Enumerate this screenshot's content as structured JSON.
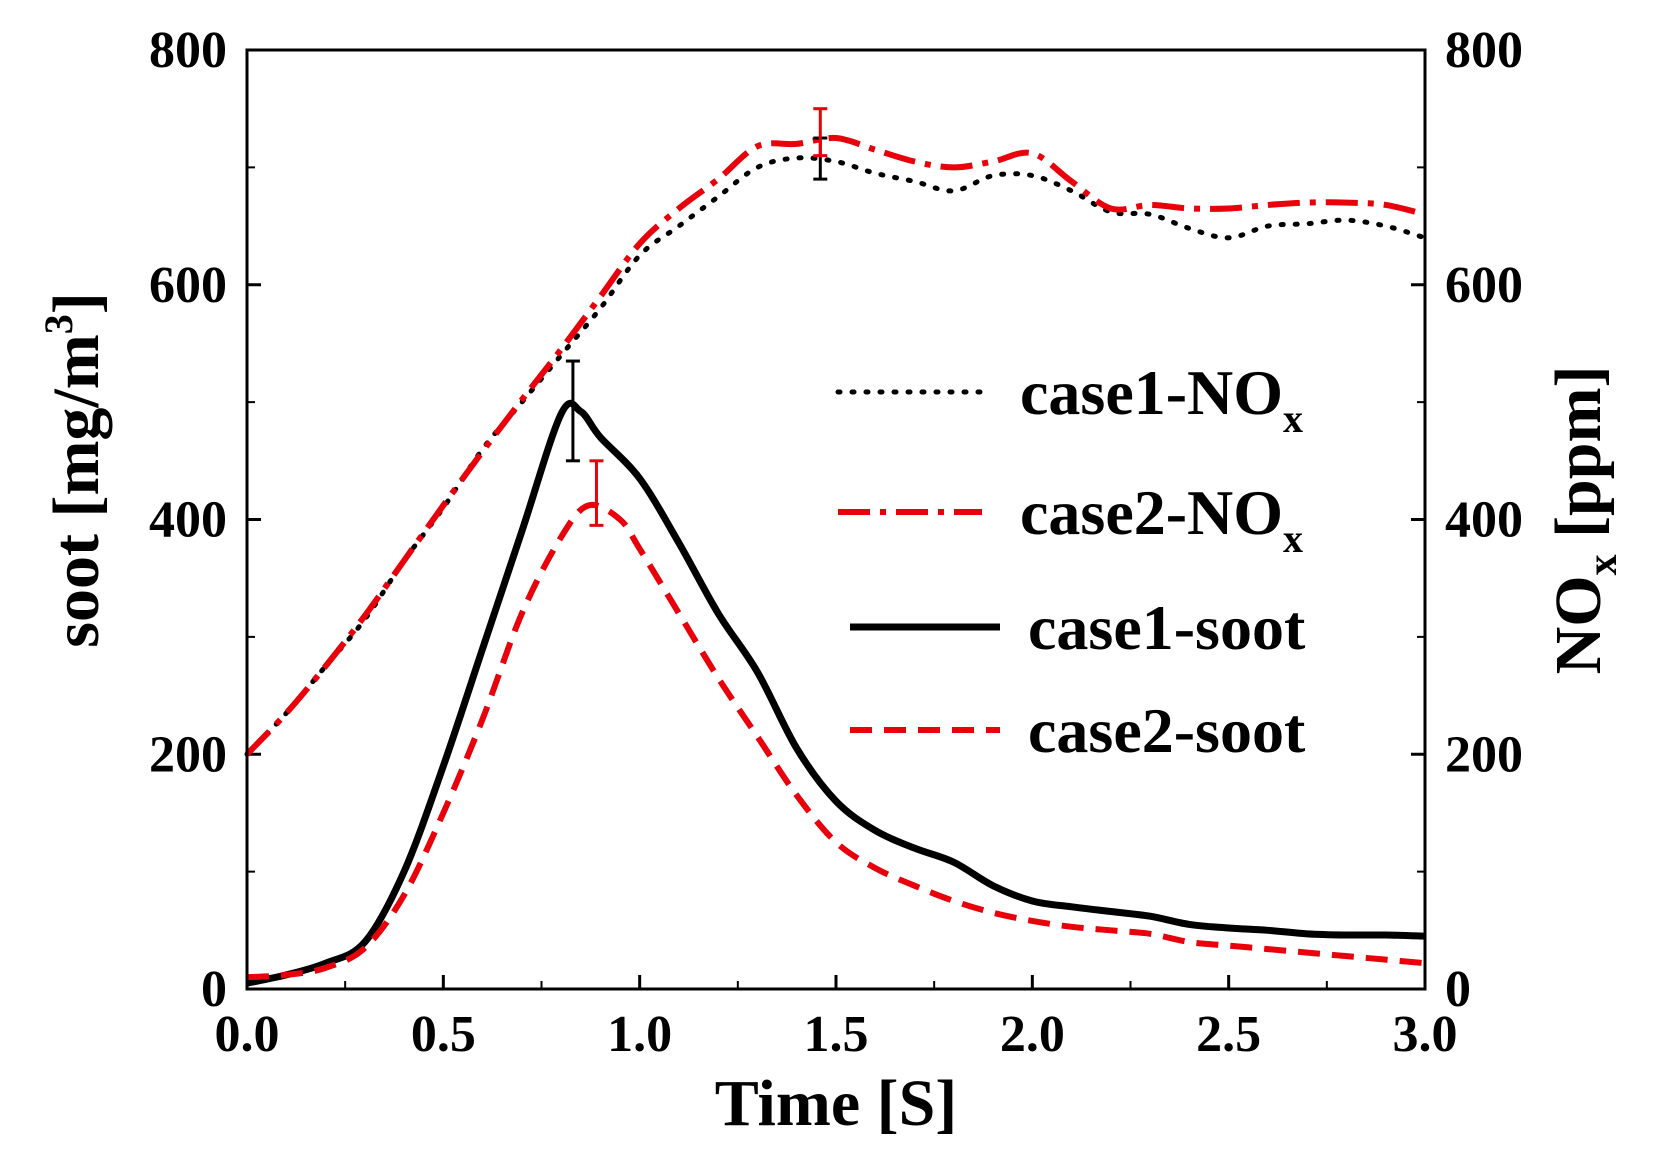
{
  "chart_data": {
    "type": "line",
    "xlabel": "Time [S]",
    "ylabel_left": {
      "main": "soot [mg/m",
      "sup": "3",
      "close": "]"
    },
    "ylabel_right": {
      "main": "NO",
      "sub": "x",
      "rest": " [ppm]"
    },
    "xlim": [
      0,
      3
    ],
    "ylim_left": [
      0,
      800
    ],
    "ylim_right": [
      0,
      800
    ],
    "x_ticks": [
      "0.0",
      "0.5",
      "1.0",
      "1.5",
      "2.0",
      "2.5",
      "3.0"
    ],
    "y_ticks_left": [
      "0",
      "200",
      "400",
      "600",
      "800"
    ],
    "y_ticks_right": [
      "0",
      "200",
      "400",
      "600",
      "800"
    ],
    "legend_position": "right-middle",
    "series": [
      {
        "id": "case1-nox",
        "legend_main": "case1-NO",
        "legend_sub": "x",
        "axis": "right",
        "color": "#000000",
        "style": "dotted",
        "points": [
          [
            0,
            200
          ],
          [
            0.1,
            235
          ],
          [
            0.2,
            275
          ],
          [
            0.3,
            315
          ],
          [
            0.4,
            365
          ],
          [
            0.5,
            410
          ],
          [
            0.6,
            460
          ],
          [
            0.7,
            500
          ],
          [
            0.8,
            540
          ],
          [
            0.9,
            580
          ],
          [
            1.0,
            625
          ],
          [
            1.1,
            650
          ],
          [
            1.2,
            675
          ],
          [
            1.3,
            700
          ],
          [
            1.4,
            708
          ],
          [
            1.5,
            705
          ],
          [
            1.6,
            695
          ],
          [
            1.7,
            688
          ],
          [
            1.8,
            680
          ],
          [
            1.9,
            693
          ],
          [
            2.0,
            693
          ],
          [
            2.1,
            680
          ],
          [
            2.2,
            662
          ],
          [
            2.3,
            660
          ],
          [
            2.4,
            648
          ],
          [
            2.5,
            640
          ],
          [
            2.6,
            650
          ],
          [
            2.7,
            652
          ],
          [
            2.8,
            655
          ],
          [
            2.9,
            650
          ],
          [
            3.0,
            640
          ]
        ]
      },
      {
        "id": "case2-nox",
        "legend_main": "case2-NO",
        "legend_sub": "x",
        "axis": "right",
        "color": "#e8000b",
        "style": "dashdot",
        "points": [
          [
            0,
            200
          ],
          [
            0.1,
            235
          ],
          [
            0.2,
            275
          ],
          [
            0.3,
            318
          ],
          [
            0.4,
            365
          ],
          [
            0.5,
            412
          ],
          [
            0.6,
            458
          ],
          [
            0.7,
            502
          ],
          [
            0.8,
            545
          ],
          [
            0.9,
            590
          ],
          [
            1.0,
            635
          ],
          [
            1.1,
            665
          ],
          [
            1.2,
            690
          ],
          [
            1.3,
            718
          ],
          [
            1.4,
            720
          ],
          [
            1.5,
            725
          ],
          [
            1.6,
            715
          ],
          [
            1.7,
            705
          ],
          [
            1.8,
            700
          ],
          [
            1.9,
            705
          ],
          [
            2.0,
            712
          ],
          [
            2.1,
            688
          ],
          [
            2.2,
            665
          ],
          [
            2.3,
            668
          ],
          [
            2.4,
            665
          ],
          [
            2.5,
            665
          ],
          [
            2.6,
            668
          ],
          [
            2.7,
            670
          ],
          [
            2.8,
            670
          ],
          [
            2.9,
            668
          ],
          [
            3.0,
            660
          ]
        ]
      },
      {
        "id": "case1-soot",
        "legend_main": "case1-soot",
        "legend_sub": "",
        "axis": "left",
        "color": "#000000",
        "style": "solid",
        "points": [
          [
            0,
            5
          ],
          [
            0.1,
            12
          ],
          [
            0.2,
            22
          ],
          [
            0.3,
            40
          ],
          [
            0.4,
            100
          ],
          [
            0.5,
            190
          ],
          [
            0.6,
            290
          ],
          [
            0.7,
            390
          ],
          [
            0.8,
            490
          ],
          [
            0.85,
            492
          ],
          [
            0.9,
            470
          ],
          [
            1.0,
            435
          ],
          [
            1.1,
            380
          ],
          [
            1.2,
            320
          ],
          [
            1.3,
            270
          ],
          [
            1.4,
            205
          ],
          [
            1.5,
            160
          ],
          [
            1.6,
            135
          ],
          [
            1.7,
            120
          ],
          [
            1.8,
            108
          ],
          [
            1.9,
            88
          ],
          [
            2.0,
            75
          ],
          [
            2.1,
            70
          ],
          [
            2.2,
            66
          ],
          [
            2.3,
            62
          ],
          [
            2.4,
            55
          ],
          [
            2.5,
            52
          ],
          [
            2.6,
            50
          ],
          [
            2.7,
            47
          ],
          [
            2.8,
            46
          ],
          [
            2.9,
            46
          ],
          [
            3.0,
            45
          ]
        ]
      },
      {
        "id": "case2-soot",
        "legend_main": "case2-soot",
        "legend_sub": "",
        "axis": "left",
        "color": "#e8000b",
        "style": "dashed",
        "points": [
          [
            0,
            10
          ],
          [
            0.1,
            12
          ],
          [
            0.2,
            18
          ],
          [
            0.3,
            35
          ],
          [
            0.4,
            80
          ],
          [
            0.5,
            150
          ],
          [
            0.6,
            230
          ],
          [
            0.7,
            320
          ],
          [
            0.8,
            385
          ],
          [
            0.87,
            412
          ],
          [
            0.95,
            400
          ],
          [
            1.0,
            375
          ],
          [
            1.1,
            320
          ],
          [
            1.2,
            265
          ],
          [
            1.3,
            215
          ],
          [
            1.4,
            165
          ],
          [
            1.5,
            125
          ],
          [
            1.6,
            103
          ],
          [
            1.7,
            88
          ],
          [
            1.8,
            75
          ],
          [
            1.9,
            65
          ],
          [
            2.0,
            58
          ],
          [
            2.1,
            53
          ],
          [
            2.2,
            50
          ],
          [
            2.3,
            47
          ],
          [
            2.4,
            40
          ],
          [
            2.5,
            37
          ],
          [
            2.6,
            34
          ],
          [
            2.7,
            31
          ],
          [
            2.8,
            28
          ],
          [
            2.9,
            25
          ],
          [
            3.0,
            22
          ]
        ]
      }
    ],
    "error_bars": [
      {
        "series": "case1-soot",
        "axis": "left",
        "x": 0.83,
        "y_low": 450,
        "y_high": 535,
        "color": "#000000"
      },
      {
        "series": "case2-soot",
        "axis": "left",
        "x": 0.89,
        "y_low": 395,
        "y_high": 450,
        "color": "#e8000b"
      },
      {
        "series": "case1-nox",
        "axis": "right",
        "x": 1.46,
        "y_low": 690,
        "y_high": 725,
        "color": "#000000"
      },
      {
        "series": "case2-nox",
        "axis": "right",
        "x": 1.46,
        "y_low": 710,
        "y_high": 750,
        "color": "#e8000b"
      }
    ]
  }
}
